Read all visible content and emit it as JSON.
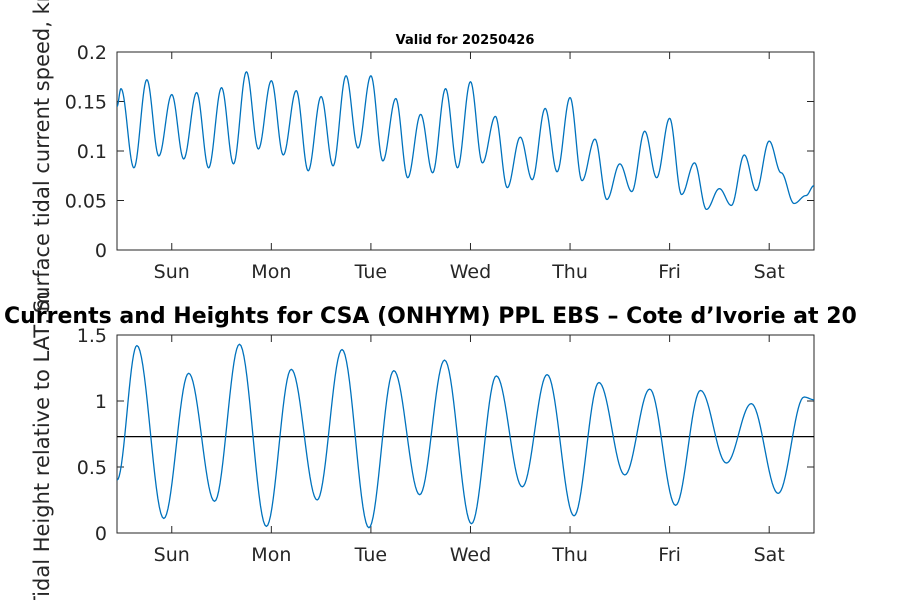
{
  "chart_data": [
    {
      "type": "line",
      "title": "Valid for 20250426",
      "ylabel": "Surface tidal current speed, kn",
      "ylim": [
        0,
        0.2
      ],
      "yticks": [
        0,
        0.05,
        0.1,
        0.15,
        0.2
      ],
      "ytick_labels": [
        "0",
        "0.05",
        "0.1",
        "0.15",
        "0.2"
      ],
      "xlim": [
        0,
        7
      ],
      "xticks": [
        0.55,
        1.55,
        2.55,
        3.55,
        4.55,
        5.55,
        6.55
      ],
      "xtick_labels": [
        "Sun",
        "Mon",
        "Tue",
        "Wed",
        "Thu",
        "Fri",
        "Sat"
      ],
      "series_color": "#0072bd",
      "series": [
        {
          "x": [
            0.0,
            0.04,
            0.17,
            0.3,
            0.42,
            0.55,
            0.67,
            0.8,
            0.92,
            1.05,
            1.17,
            1.3,
            1.42,
            1.55,
            1.67,
            1.8,
            1.92,
            2.05,
            2.17,
            2.3,
            2.42,
            2.55,
            2.67,
            2.8,
            2.92,
            3.05,
            3.17,
            3.3,
            3.42,
            3.55,
            3.67,
            3.8,
            3.92,
            4.05,
            4.17,
            4.3,
            4.42,
            4.55,
            4.67,
            4.8,
            4.92,
            5.05,
            5.17,
            5.3,
            5.42,
            5.55,
            5.67,
            5.8,
            5.92,
            6.05,
            6.17,
            6.3,
            6.42,
            6.55,
            6.67,
            6.8,
            6.92,
            7.0
          ],
          "y": [
            0.145,
            0.163,
            0.083,
            0.172,
            0.095,
            0.157,
            0.092,
            0.159,
            0.083,
            0.164,
            0.087,
            0.18,
            0.102,
            0.171,
            0.096,
            0.161,
            0.08,
            0.155,
            0.085,
            0.176,
            0.103,
            0.176,
            0.09,
            0.153,
            0.073,
            0.137,
            0.078,
            0.163,
            0.083,
            0.17,
            0.088,
            0.135,
            0.063,
            0.114,
            0.071,
            0.143,
            0.079,
            0.154,
            0.07,
            0.112,
            0.051,
            0.087,
            0.059,
            0.12,
            0.073,
            0.133,
            0.056,
            0.088,
            0.041,
            0.062,
            0.045,
            0.096,
            0.06,
            0.11,
            0.078,
            0.047,
            0.055,
            0.065
          ]
        }
      ]
    },
    {
      "type": "line",
      "title": "Currents and Heights for CSA (ONHYM) PPL EBS  – Cote d’Ivorie at 20",
      "ylabel": "Tidal Height relative to LAT, m",
      "ylim": [
        0,
        1.5
      ],
      "yticks": [
        0,
        0.5,
        1,
        1.5
      ],
      "ytick_labels": [
        "0",
        "0.5",
        "1",
        "1.5"
      ],
      "xlim": [
        0,
        7
      ],
      "xticks": [
        0.55,
        1.55,
        2.55,
        3.55,
        4.55,
        5.55,
        6.55
      ],
      "xtick_labels": [
        "Sun",
        "Mon",
        "Tue",
        "Wed",
        "Thu",
        "Fri",
        "Sat"
      ],
      "reference_line": 0.73,
      "reference_line_color": "#000000",
      "series_color": "#0072bd",
      "series": [
        {
          "x": [
            0.0,
            0.2,
            0.47,
            0.72,
            0.98,
            1.23,
            1.5,
            1.75,
            2.01,
            2.26,
            2.53,
            2.78,
            3.04,
            3.29,
            3.56,
            3.81,
            4.07,
            4.32,
            4.59,
            4.84,
            5.1,
            5.35,
            5.61,
            5.86,
            6.12,
            6.37,
            6.64,
            6.9,
            7.0
          ],
          "y": [
            0.4,
            1.42,
            0.11,
            1.21,
            0.24,
            1.43,
            0.05,
            1.24,
            0.25,
            1.39,
            0.04,
            1.23,
            0.29,
            1.31,
            0.07,
            1.19,
            0.35,
            1.2,
            0.13,
            1.14,
            0.44,
            1.09,
            0.21,
            1.08,
            0.53,
            0.98,
            0.3,
            1.03,
            1.01
          ]
        }
      ]
    }
  ]
}
